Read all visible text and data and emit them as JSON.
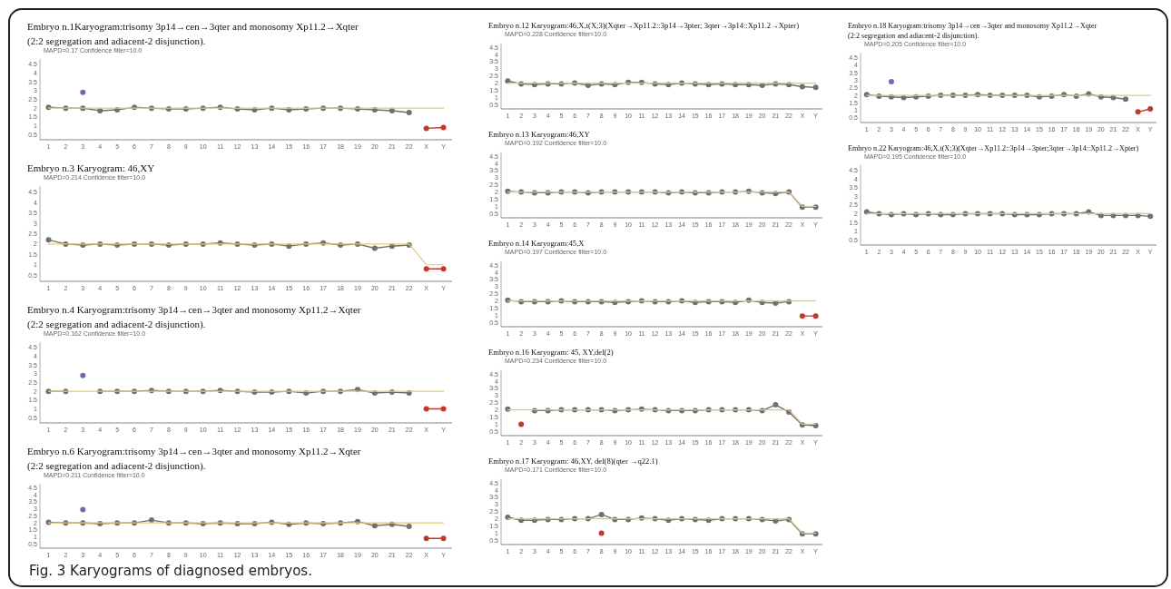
{
  "chart_data": [
    {
      "type": "line",
      "title": "Embryo n.1Karyogram:trisomy 3p14→cen→3qter and monosomy Xp11.2→Xqter\n(2:2 segregation and adiacent-2 disjunction).",
      "subtitle": "MAPD=0.17 Confidence filter=10.0",
      "categories": [
        "1",
        "2",
        "3",
        "4",
        "5",
        "6",
        "7",
        "8",
        "9",
        "10",
        "11",
        "12",
        "13",
        "14",
        "15",
        "16",
        "17",
        "18",
        "19",
        "20",
        "21",
        "22",
        "X",
        "Y"
      ],
      "ylim": [
        0.2,
        4.8
      ],
      "yticks": [
        0.5,
        1,
        1.5,
        2,
        2.5,
        3,
        3.5,
        4,
        4.5
      ],
      "marker": "circle",
      "series": [
        {
          "color": "#e3c77a",
          "marker": "none",
          "values": [
            2,
            2,
            2,
            2,
            2,
            2,
            2,
            2,
            2,
            2,
            2,
            2,
            2,
            2,
            2,
            2,
            2,
            2,
            2,
            2,
            2,
            2,
            2,
            2
          ]
        },
        {
          "color": "#707070",
          "values": [
            2.05,
            2,
            2,
            1.85,
            1.9,
            2.05,
            2,
            1.95,
            1.95,
            2,
            2.05,
            1.95,
            1.9,
            2,
            1.9,
            1.95,
            2,
            2,
            1.95,
            1.9,
            1.85,
            1.75,
            null,
            null
          ]
        },
        {
          "color": "#6b6bbd",
          "values": [
            null,
            null,
            2.9,
            null,
            null,
            null,
            null,
            null,
            null,
            null,
            null,
            null,
            null,
            null,
            null,
            null,
            null,
            null,
            null,
            null,
            null,
            null,
            null,
            null
          ]
        },
        {
          "color": "#c0392b",
          "values": [
            null,
            null,
            null,
            null,
            null,
            null,
            null,
            null,
            null,
            null,
            null,
            null,
            null,
            null,
            null,
            null,
            null,
            null,
            null,
            null,
            null,
            null,
            0.85,
            0.9
          ]
        }
      ]
    },
    {
      "type": "line",
      "title": "Embryo n.3 Karyogram: 46,XY",
      "subtitle": "MAPD=0.214 Confidence filter=10.0",
      "categories": [
        "1",
        "2",
        "3",
        "4",
        "5",
        "6",
        "7",
        "8",
        "9",
        "10",
        "11",
        "12",
        "13",
        "14",
        "15",
        "16",
        "17",
        "18",
        "19",
        "20",
        "21",
        "22",
        "X",
        "Y"
      ],
      "ylim": [
        0.2,
        4.8
      ],
      "yticks": [
        0.5,
        1,
        1.5,
        2,
        2.5,
        3,
        3.5,
        4,
        4.5
      ],
      "marker": "circle",
      "series": [
        {
          "color": "#e3c77a",
          "marker": "none",
          "values": [
            2,
            2,
            2,
            2,
            2,
            2,
            2,
            2,
            2,
            2,
            2,
            2,
            2,
            2,
            2,
            2,
            2,
            2,
            2,
            2,
            2,
            2,
            1,
            1
          ]
        },
        {
          "color": "#707070",
          "values": [
            2.2,
            2,
            1.95,
            2,
            1.95,
            2,
            2,
            1.95,
            2,
            2,
            2.05,
            2,
            1.95,
            2,
            1.9,
            2,
            2.05,
            1.95,
            2,
            1.8,
            1.9,
            1.95,
            null,
            null
          ]
        },
        {
          "color": "#c0392b",
          "values": [
            null,
            null,
            null,
            null,
            null,
            null,
            null,
            null,
            null,
            null,
            null,
            null,
            null,
            null,
            null,
            null,
            null,
            null,
            null,
            null,
            null,
            null,
            0.8,
            0.8
          ]
        }
      ]
    },
    {
      "type": "line",
      "title": "Embryo n.4 Karyogram:trisomy 3p14→cen→3qter and monosomy Xp11.2→Xqter\n(2:2 segregation and adiacent-2 disjunction).",
      "subtitle": "MAPD=0.162 Confidence filter=10.0",
      "categories": [
        "1",
        "2",
        "3",
        "4",
        "5",
        "6",
        "7",
        "8",
        "9",
        "10",
        "11",
        "12",
        "13",
        "14",
        "15",
        "16",
        "17",
        "18",
        "19",
        "20",
        "21",
        "22",
        "X",
        "Y"
      ],
      "ylim": [
        0.2,
        4.8
      ],
      "yticks": [
        0.5,
        1,
        1.5,
        2,
        2.5,
        3,
        3.5,
        4,
        4.5
      ],
      "marker": "circle",
      "series": [
        {
          "color": "#e3c77a",
          "marker": "none",
          "values": [
            2,
            2,
            2,
            2,
            2,
            2,
            2,
            2,
            2,
            2,
            2,
            2,
            2,
            2,
            2,
            2,
            2,
            2,
            2,
            2,
            2,
            2,
            2,
            2
          ]
        },
        {
          "color": "#707070",
          "values": [
            2,
            2,
            null,
            2,
            2,
            2,
            2.05,
            2,
            2,
            2,
            2.05,
            2,
            1.95,
            1.95,
            2,
            1.9,
            2,
            2,
            2.1,
            1.9,
            1.95,
            1.9,
            null,
            null
          ]
        },
        {
          "color": "#6b6bbd",
          "values": [
            null,
            null,
            2.9,
            null,
            null,
            null,
            null,
            null,
            null,
            null,
            null,
            null,
            null,
            null,
            null,
            null,
            null,
            null,
            null,
            null,
            null,
            null,
            null,
            null
          ]
        },
        {
          "color": "#c0392b",
          "values": [
            null,
            null,
            null,
            null,
            null,
            null,
            null,
            null,
            null,
            null,
            null,
            null,
            null,
            null,
            null,
            null,
            null,
            null,
            null,
            null,
            null,
            null,
            1,
            1
          ]
        }
      ]
    },
    {
      "type": "line",
      "title": "Embryo n.6 Karyogram:trisomy 3p14→cen→3qter and monosomy Xp11.2→Xqter\n(2:2 segregation and adiacent-2 disjunction).",
      "subtitle": "MAPD=0.211 Confidence filter=10.0",
      "annotations": [
        "Fig. 3 Karyograms of diagnosed embryos."
      ],
      "categories": [
        "1",
        "2",
        "3",
        "4",
        "5",
        "6",
        "7",
        "8",
        "9",
        "10",
        "11",
        "12",
        "13",
        "14",
        "15",
        "16",
        "17",
        "18",
        "19",
        "20",
        "21",
        "22",
        "X",
        "Y"
      ],
      "ylim": [
        0.2,
        4.8
      ],
      "yticks": [
        0.5,
        1,
        1.5,
        2,
        2.5,
        3,
        3.5,
        4,
        4.5
      ],
      "marker": "circle",
      "series": [
        {
          "color": "#e3c77a",
          "marker": "none",
          "values": [
            2,
            2,
            2,
            2,
            2,
            2,
            2,
            2,
            2,
            2,
            2,
            2,
            2,
            2,
            2,
            2,
            2,
            2,
            2,
            2,
            2,
            2,
            2,
            2
          ]
        },
        {
          "color": "#707070",
          "values": [
            2.05,
            2,
            2,
            1.95,
            2,
            2,
            2.2,
            2,
            2,
            1.95,
            2,
            1.95,
            1.95,
            2.05,
            1.9,
            2,
            1.95,
            2,
            2.1,
            1.8,
            1.9,
            1.75,
            null,
            null
          ]
        },
        {
          "color": "#6b6bbd",
          "values": [
            null,
            null,
            2.95,
            null,
            null,
            null,
            null,
            null,
            null,
            null,
            null,
            null,
            null,
            null,
            null,
            null,
            null,
            null,
            null,
            null,
            null,
            null,
            null,
            null
          ]
        },
        {
          "color": "#c0392b",
          "values": [
            null,
            null,
            null,
            null,
            null,
            null,
            null,
            null,
            null,
            null,
            null,
            null,
            null,
            null,
            null,
            null,
            null,
            null,
            null,
            null,
            null,
            null,
            0.9,
            0.9
          ]
        }
      ]
    },
    {
      "type": "line",
      "title": "Embryo n.12 Karyogram:46,X,t(X;3)(Xqter→Xp11.2::3p14→3pter; 3qter→3p14::Xp11.2→Xpter)",
      "subtitle": "MAPD=0.228 Confidence filter=10.0",
      "categories": [
        "1",
        "2",
        "3",
        "4",
        "5",
        "6",
        "7",
        "8",
        "9",
        "10",
        "11",
        "12",
        "13",
        "14",
        "15",
        "16",
        "17",
        "18",
        "19",
        "20",
        "21",
        "22",
        "X",
        "Y"
      ],
      "ylim": [
        0.2,
        4.8
      ],
      "yticks": [
        0.5,
        1,
        1.5,
        2,
        2.5,
        3,
        3.5,
        4,
        4.5
      ],
      "marker": "circle",
      "series": [
        {
          "color": "#e3c77a",
          "marker": "none",
          "values": [
            2,
            2,
            2,
            2,
            2,
            2,
            2,
            2,
            2,
            2,
            2,
            2,
            2,
            2,
            2,
            2,
            2,
            2,
            2,
            2,
            2,
            2,
            2,
            2
          ]
        },
        {
          "color": "#707070",
          "values": [
            2.15,
            1.95,
            1.9,
            1.95,
            1.95,
            2,
            1.85,
            1.95,
            1.9,
            2.05,
            2.05,
            1.95,
            1.9,
            2,
            1.95,
            1.9,
            1.95,
            1.9,
            1.9,
            1.85,
            1.95,
            1.9,
            1.75,
            1.7
          ]
        }
      ]
    },
    {
      "type": "line",
      "title": "Embryo n.13 Karyogram:46,XY",
      "subtitle": "MAPD=0.192 Confidence filter=10.0",
      "categories": [
        "1",
        "2",
        "3",
        "4",
        "5",
        "6",
        "7",
        "8",
        "9",
        "10",
        "11",
        "12",
        "13",
        "14",
        "15",
        "16",
        "17",
        "18",
        "19",
        "20",
        "21",
        "22",
        "X",
        "Y"
      ],
      "ylim": [
        0.2,
        4.8
      ],
      "yticks": [
        0.5,
        1,
        1.5,
        2,
        2.5,
        3,
        3.5,
        4,
        4.5
      ],
      "marker": "circle",
      "series": [
        {
          "color": "#e3c77a",
          "marker": "none",
          "values": [
            2,
            2,
            2,
            2,
            2,
            2,
            2,
            2,
            2,
            2,
            2,
            2,
            2,
            2,
            2,
            2,
            2,
            2,
            2,
            2,
            2,
            2,
            1,
            1
          ]
        },
        {
          "color": "#707070",
          "values": [
            2.05,
            2,
            1.95,
            1.95,
            2,
            2,
            1.95,
            2,
            2,
            2,
            2,
            2,
            1.95,
            2,
            1.95,
            1.95,
            2,
            2,
            2.05,
            1.95,
            1.9,
            2,
            0.95,
            0.95
          ]
        }
      ]
    },
    {
      "type": "line",
      "title": "Embryo n.14 Karyogram:45,X",
      "subtitle": "MAPD=0.197 Confidence filter=10.0",
      "categories": [
        "1",
        "2",
        "3",
        "4",
        "5",
        "6",
        "7",
        "8",
        "9",
        "10",
        "11",
        "12",
        "13",
        "14",
        "15",
        "16",
        "17",
        "18",
        "19",
        "20",
        "21",
        "22",
        "X",
        "Y"
      ],
      "ylim": [
        0.2,
        4.8
      ],
      "yticks": [
        0.5,
        1,
        1.5,
        2,
        2.5,
        3,
        3.5,
        4,
        4.5
      ],
      "marker": "circle",
      "series": [
        {
          "color": "#e3c77a",
          "marker": "none",
          "values": [
            2,
            2,
            2,
            2,
            2,
            2,
            2,
            2,
            2,
            2,
            2,
            2,
            2,
            2,
            2,
            2,
            2,
            2,
            2,
            2,
            2,
            2,
            2,
            2
          ]
        },
        {
          "color": "#707070",
          "values": [
            2.05,
            1.95,
            1.95,
            1.95,
            2,
            1.95,
            1.95,
            1.95,
            1.9,
            1.95,
            2,
            1.95,
            1.95,
            2,
            1.9,
            1.95,
            1.95,
            1.9,
            2.05,
            1.9,
            1.85,
            1.95,
            null,
            null
          ]
        },
        {
          "color": "#c0392b",
          "values": [
            null,
            null,
            null,
            null,
            null,
            null,
            null,
            null,
            null,
            null,
            null,
            null,
            null,
            null,
            null,
            null,
            null,
            null,
            null,
            null,
            null,
            null,
            0.95,
            0.95
          ]
        }
      ]
    },
    {
      "type": "line",
      "title": "Embryo n.16 Karyogram: 45, XY,del(2)",
      "subtitle": "MAPD=0.234 Confidence filter=10.0",
      "categories": [
        "1",
        "2",
        "3",
        "4",
        "5",
        "6",
        "7",
        "8",
        "9",
        "10",
        "11",
        "12",
        "13",
        "14",
        "15",
        "16",
        "17",
        "18",
        "19",
        "20",
        "21",
        "22",
        "X",
        "Y"
      ],
      "ylim": [
        0.2,
        4.8
      ],
      "yticks": [
        0.5,
        1,
        1.5,
        2,
        2.5,
        3,
        3.5,
        4,
        4.5
      ],
      "marker": "circle",
      "series": [
        {
          "color": "#e3c77a",
          "marker": "none",
          "values": [
            2,
            2,
            2,
            2,
            2,
            2,
            2,
            2,
            2,
            2,
            2,
            2,
            2,
            2,
            2,
            2,
            2,
            2,
            2,
            2,
            2,
            2,
            1,
            1
          ]
        },
        {
          "color": "#707070",
          "values": [
            2.05,
            null,
            1.95,
            1.95,
            2,
            2,
            2,
            2,
            1.95,
            2,
            2.05,
            2,
            1.95,
            1.95,
            1.95,
            2,
            2,
            2,
            2,
            1.95,
            2.35,
            1.85,
            0.95,
            0.9
          ]
        },
        {
          "color": "#c0392b",
          "values": [
            null,
            1,
            null,
            null,
            null,
            null,
            null,
            null,
            null,
            null,
            null,
            null,
            null,
            null,
            null,
            null,
            null,
            null,
            null,
            null,
            null,
            null,
            null,
            null
          ]
        }
      ]
    },
    {
      "type": "line",
      "title": "Embryo n.17 Karyogram: 46,XY, del(8)(qter →q22.1)",
      "subtitle": "MAPD=0.171 Confidence filter=10.0",
      "categories": [
        "1",
        "2",
        "3",
        "4",
        "5",
        "6",
        "7",
        "8",
        "9",
        "10",
        "11",
        "12",
        "13",
        "14",
        "15",
        "16",
        "17",
        "18",
        "19",
        "20",
        "21",
        "22",
        "X",
        "Y"
      ],
      "ylim": [
        0.2,
        4.8
      ],
      "yticks": [
        0.5,
        1,
        1.5,
        2,
        2.5,
        3,
        3.5,
        4,
        4.5
      ],
      "marker": "circle",
      "series": [
        {
          "color": "#e3c77a",
          "marker": "none",
          "values": [
            2,
            2,
            2,
            2,
            2,
            2,
            2,
            2,
            2,
            2,
            2,
            2,
            2,
            2,
            2,
            2,
            2,
            2,
            2,
            2,
            2,
            2,
            1,
            1
          ]
        },
        {
          "color": "#707070",
          "values": [
            2.1,
            1.9,
            1.9,
            1.95,
            1.95,
            2,
            2,
            2.3,
            1.95,
            1.95,
            2.05,
            2,
            1.9,
            2,
            1.95,
            1.9,
            2,
            2,
            2,
            1.95,
            1.85,
            1.95,
            0.95,
            0.95
          ]
        },
        {
          "color": "#c0392b",
          "values": [
            null,
            null,
            null,
            null,
            null,
            null,
            null,
            1,
            null,
            null,
            null,
            null,
            null,
            null,
            null,
            null,
            null,
            null,
            null,
            null,
            null,
            null,
            null,
            null
          ]
        }
      ]
    },
    {
      "type": "line",
      "title": "Embryo n.18 Karyogram:trisomy 3p14→cen→3qter and monosomy Xp11.2→Xqter\n(2:2 segregation and adiacent-2 disjunction).",
      "subtitle": "MAPD=0.205 Confidence filter=10.0",
      "categories": [
        "1",
        "2",
        "3",
        "4",
        "5",
        "6",
        "7",
        "8",
        "9",
        "10",
        "11",
        "12",
        "13",
        "14",
        "15",
        "16",
        "17",
        "18",
        "19",
        "20",
        "21",
        "22",
        "X",
        "Y"
      ],
      "ylim": [
        0.2,
        4.8
      ],
      "yticks": [
        0.5,
        1,
        1.5,
        2,
        2.5,
        3,
        3.5,
        4,
        4.5
      ],
      "marker": "circle",
      "series": [
        {
          "color": "#e3c77a",
          "marker": "none",
          "values": [
            2,
            2,
            2,
            2,
            2,
            2,
            2,
            2,
            2,
            2,
            2,
            2,
            2,
            2,
            2,
            2,
            2,
            2,
            2,
            2,
            2,
            2,
            2,
            2
          ]
        },
        {
          "color": "#707070",
          "values": [
            2.05,
            1.95,
            1.9,
            1.85,
            1.9,
            1.95,
            2,
            2,
            2,
            2.05,
            2,
            2,
            2,
            2,
            1.9,
            1.95,
            2.05,
            1.95,
            2.1,
            1.9,
            1.85,
            1.75,
            null,
            null
          ]
        },
        {
          "color": "#6b6bbd",
          "values": [
            null,
            null,
            2.9,
            null,
            null,
            null,
            null,
            null,
            null,
            null,
            null,
            null,
            null,
            null,
            null,
            null,
            null,
            null,
            null,
            null,
            null,
            null,
            null,
            null
          ]
        },
        {
          "color": "#c0392b",
          "values": [
            null,
            null,
            null,
            null,
            null,
            null,
            null,
            null,
            null,
            null,
            null,
            null,
            null,
            null,
            null,
            null,
            null,
            null,
            null,
            null,
            null,
            null,
            0.9,
            1.1
          ]
        }
      ]
    },
    {
      "type": "line",
      "title": "Embryo n.22 Karyogram:46,X,t(X;3)(Xqter→Xp11.2::3p14→3pter;3qter→3p14::Xp11.2→Xpter)",
      "subtitle": "MAPD=0.195 Confidence filter=10.0",
      "categories": [
        "1",
        "2",
        "3",
        "4",
        "5",
        "6",
        "7",
        "8",
        "9",
        "10",
        "11",
        "12",
        "13",
        "14",
        "15",
        "16",
        "17",
        "18",
        "19",
        "20",
        "21",
        "22",
        "X",
        "Y"
      ],
      "ylim": [
        0.2,
        4.8
      ],
      "yticks": [
        0.5,
        1,
        1.5,
        2,
        2.5,
        3,
        3.5,
        4,
        4.5
      ],
      "marker": "circle",
      "series": [
        {
          "color": "#e3c77a",
          "marker": "none",
          "values": [
            2,
            2,
            2,
            2,
            2,
            2,
            2,
            2,
            2,
            2,
            2,
            2,
            2,
            2,
            2,
            2,
            2,
            2,
            2,
            2,
            2,
            2,
            2,
            2
          ]
        },
        {
          "color": "#707070",
          "values": [
            2.1,
            2,
            1.95,
            2,
            1.95,
            2,
            1.95,
            1.95,
            2,
            2,
            2,
            2,
            1.95,
            1.95,
            1.95,
            2,
            2,
            2,
            2.1,
            1.9,
            1.9,
            1.9,
            1.9,
            1.85
          ]
        }
      ]
    }
  ]
}
